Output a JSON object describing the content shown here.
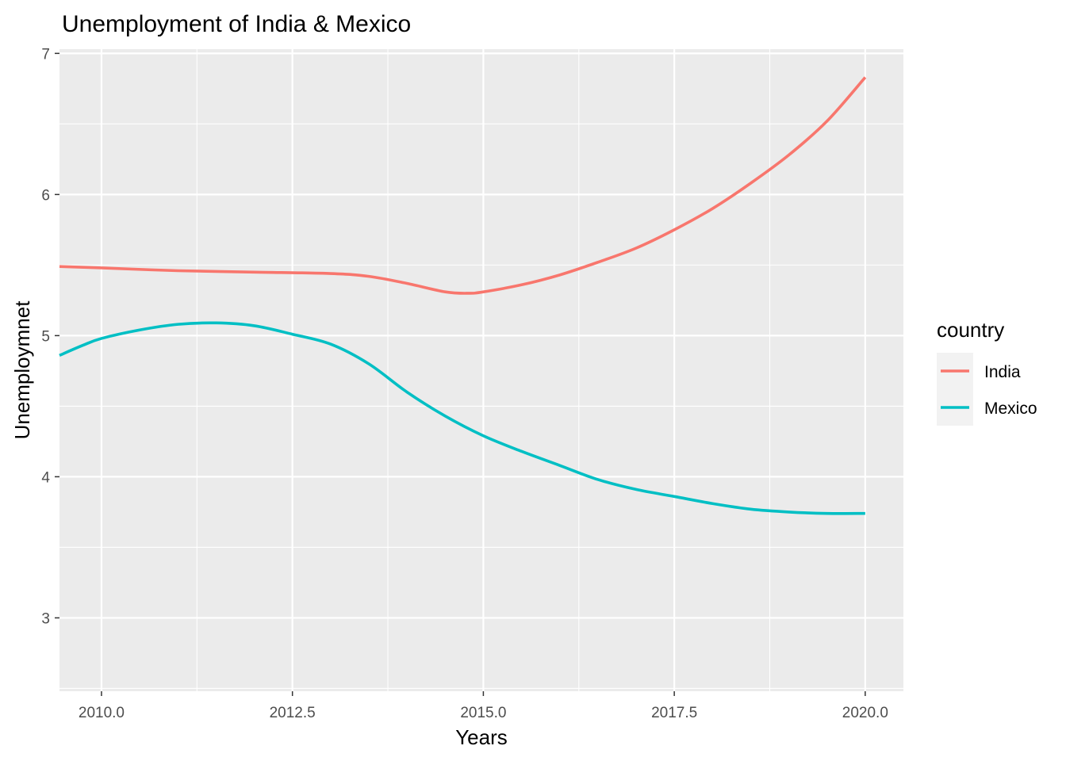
{
  "chart_data": {
    "type": "line",
    "title": "Unemployment of India & Mexico",
    "xlabel": "Years",
    "ylabel": "Unemploymnet",
    "xlim": [
      2009.45,
      2020.5
    ],
    "ylim": [
      2.48,
      7.03
    ],
    "x_ticks": [
      2010,
      2012.5,
      2015,
      2017.5,
      2020
    ],
    "x_tick_labels": [
      "2010.0",
      "2012.5",
      "2015.0",
      "2017.5",
      "2020.0"
    ],
    "y_ticks": [
      3,
      4,
      5,
      6,
      7
    ],
    "y_tick_labels": [
      "3",
      "4",
      "5",
      "6",
      "7"
    ],
    "grid": true,
    "legend": {
      "title": "country",
      "position": "right"
    },
    "series": [
      {
        "name": "India",
        "color": "#F8766D",
        "x": [
          2009.45,
          2010,
          2011,
          2012,
          2013,
          2013.5,
          2014,
          2014.5,
          2014.8,
          2015,
          2015.5,
          2016,
          2016.5,
          2017,
          2017.5,
          2018,
          2018.5,
          2019,
          2019.5,
          2020
        ],
        "y": [
          5.49,
          5.48,
          5.46,
          5.45,
          5.44,
          5.42,
          5.37,
          5.31,
          5.3,
          5.31,
          5.36,
          5.43,
          5.52,
          5.62,
          5.75,
          5.9,
          6.08,
          6.28,
          6.52,
          6.83
        ]
      },
      {
        "name": "Mexico",
        "color": "#00BFC4",
        "x": [
          2009.45,
          2009.75,
          2010,
          2010.5,
          2011,
          2011.5,
          2012,
          2012.5,
          2013,
          2013.5,
          2014,
          2014.5,
          2015,
          2015.5,
          2016,
          2016.5,
          2017,
          2017.5,
          2018,
          2018.5,
          2019,
          2019.5,
          2020
        ],
        "y": [
          4.86,
          4.93,
          4.98,
          5.04,
          5.08,
          5.09,
          5.07,
          5.01,
          4.94,
          4.8,
          4.6,
          4.43,
          4.29,
          4.18,
          4.08,
          3.98,
          3.91,
          3.86,
          3.81,
          3.77,
          3.75,
          3.74,
          3.74
        ]
      }
    ]
  }
}
